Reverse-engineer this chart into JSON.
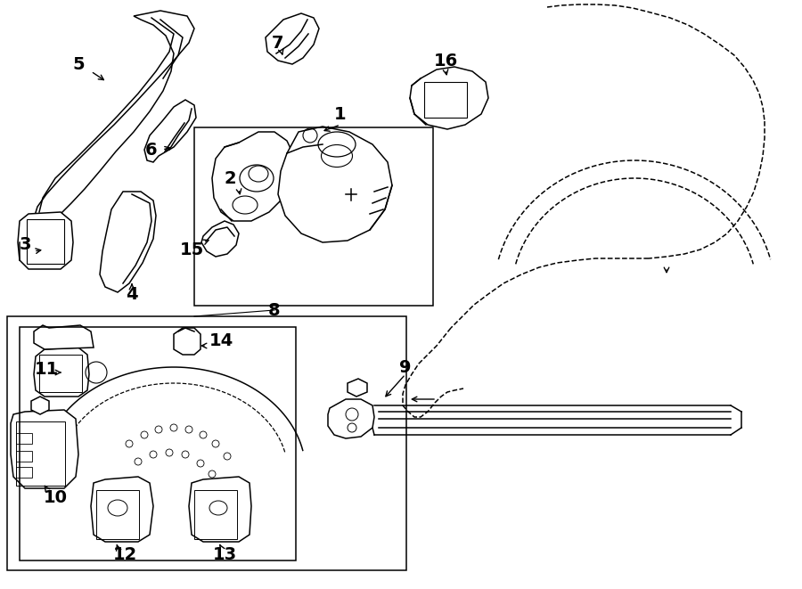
{
  "bg_color": "#ffffff",
  "lc": "#000000",
  "lw": 1.1,
  "fig_w": 9.0,
  "fig_h": 6.61,
  "dpi": 100,
  "xlim": [
    0,
    900
  ],
  "ylim": [
    0,
    661
  ]
}
